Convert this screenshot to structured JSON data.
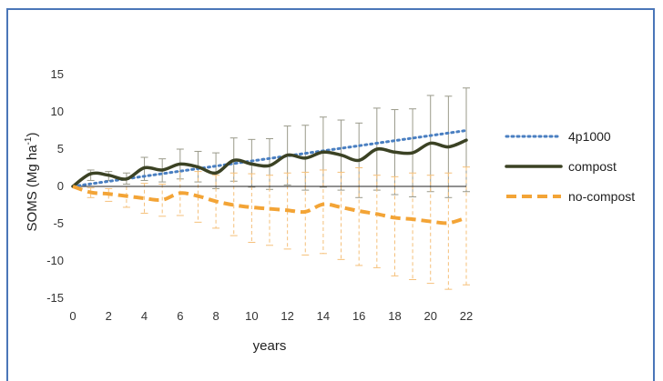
{
  "chart_data": {
    "type": "line",
    "title": "",
    "xlabel": "years",
    "ylabel_main": "SOMS (Mg ha",
    "ylabel_sup": "-1",
    "ylabel_close": ")",
    "xlim": [
      0,
      22
    ],
    "ylim": [
      -15,
      15
    ],
    "xticks": [
      0,
      2,
      4,
      6,
      8,
      10,
      12,
      14,
      16,
      18,
      20,
      22
    ],
    "yticks": [
      15,
      10,
      5,
      0,
      -5,
      -10,
      -15
    ],
    "grid": false,
    "legend_position": "right",
    "x": [
      0,
      1,
      2,
      3,
      4,
      5,
      6,
      7,
      8,
      9,
      10,
      11,
      12,
      13,
      14,
      15,
      16,
      17,
      18,
      19,
      20,
      21,
      22
    ],
    "series": [
      {
        "name": "4p1000",
        "style": "dotted",
        "color": "#4a7fc1",
        "x": [
          0,
          22
        ],
        "values": [
          0,
          7.5
        ]
      },
      {
        "name": "compost",
        "style": "solid",
        "color": "#3b4224",
        "values": [
          0,
          1.7,
          1.5,
          1.0,
          2.5,
          2.2,
          3.0,
          2.6,
          1.8,
          3.5,
          3.0,
          2.8,
          4.2,
          3.8,
          4.6,
          4.2,
          3.5,
          5.0,
          4.6,
          4.5,
          5.8,
          5.3,
          6.2
        ],
        "error_upper": [
          0,
          2.2,
          2.0,
          1.8,
          3.9,
          3.7,
          5.0,
          4.7,
          4.5,
          6.5,
          6.3,
          6.4,
          8.1,
          8.2,
          9.3,
          8.9,
          8.5,
          10.5,
          10.3,
          10.4,
          12.2,
          12.1,
          13.2
        ],
        "error_lower": [
          0,
          0.8,
          0.8,
          0.3,
          0.8,
          0.6,
          1.0,
          0.6,
          -0.3,
          0.7,
          -0.1,
          -0.4,
          0.2,
          -0.5,
          -0.1,
          -0.5,
          -1.5,
          -0.5,
          -1.1,
          -1.4,
          -0.7,
          -1.5,
          -0.7
        ]
      },
      {
        "name": "no-compost",
        "style": "dashed",
        "color": "#f3a436",
        "values": [
          0,
          -0.8,
          -1.0,
          -1.3,
          -1.6,
          -1.8,
          -0.9,
          -1.3,
          -2.0,
          -2.5,
          -2.8,
          -3.0,
          -3.2,
          -3.4,
          -2.4,
          -2.8,
          -3.3,
          -3.7,
          -4.2,
          -4.4,
          -4.7,
          -4.9,
          -4.2
        ],
        "error_upper": [
          0,
          -0.2,
          -0.3,
          0.0,
          0.4,
          0.3,
          2.0,
          2.0,
          1.5,
          1.8,
          1.7,
          1.5,
          1.8,
          1.9,
          2.2,
          1.9,
          2.5,
          1.5,
          1.3,
          1.8,
          1.5,
          1.8,
          2.6
        ],
        "error_lower": [
          0,
          -1.5,
          -2.0,
          -2.8,
          -3.6,
          -4.0,
          -3.9,
          -4.8,
          -5.6,
          -6.6,
          -7.5,
          -7.9,
          -8.4,
          -9.2,
          -9.0,
          -9.8,
          -10.6,
          -10.9,
          -12.0,
          -12.5,
          -13.0,
          -13.8,
          -13.2
        ]
      }
    ]
  }
}
